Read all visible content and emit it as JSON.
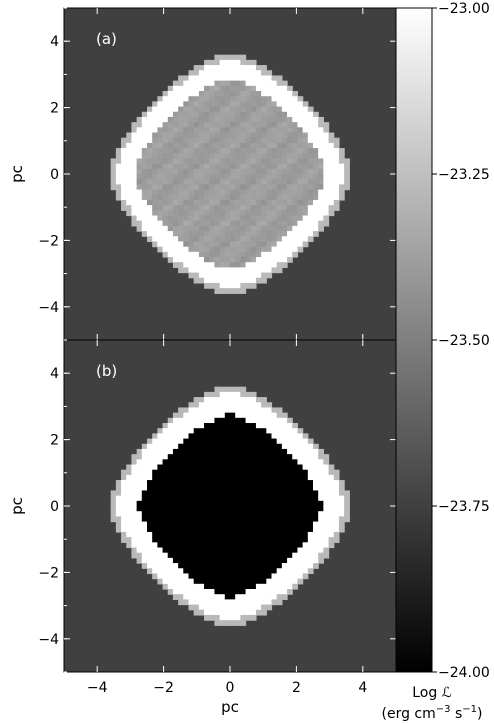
{
  "chart_data": {
    "type": "heatmap",
    "colormap": "grayscale",
    "colorbar": {
      "range": [
        -24.0,
        -23.0
      ],
      "ticks": [
        -23.0,
        -23.25,
        -23.5,
        -23.75,
        -24.0
      ],
      "tick_labels": [
        "−23.00",
        "−23.25",
        "−23.50",
        "−23.75",
        "−24.00"
      ],
      "label_line1": "Log ℒ",
      "label_line2": "(erg cm",
      "label_line2_exp1": "−3",
      "label_line2_mid": " s",
      "label_line2_exp2": "−1",
      "label_line2_end": ")"
    },
    "xlabel": "pc",
    "xlim": [
      -5,
      5
    ],
    "ylim": [
      -5,
      5
    ],
    "x_ticks": [
      -4,
      -2,
      0,
      2,
      4
    ],
    "x_tick_labels": [
      "−4",
      "−2",
      "0",
      "2",
      "4"
    ],
    "y_ticks": [
      -4,
      -2,
      0,
      2,
      4
    ],
    "y_tick_labels": [
      "−4",
      "−2",
      "0",
      "2",
      "4"
    ],
    "panels": [
      {
        "label": "(a)",
        "ylabel": "pc",
        "background_value": -23.75,
        "shell": {
          "outer_radius": 3.45,
          "inner_radius": 2.85,
          "value": -23.0
        },
        "interior_value": -23.38
      },
      {
        "label": "(b)",
        "ylabel": "pc",
        "background_value": -23.75,
        "shell": {
          "outer_radius": 3.45,
          "inner_radius": 2.75,
          "value": -23.0
        },
        "interior_value": -24.0
      }
    ]
  }
}
